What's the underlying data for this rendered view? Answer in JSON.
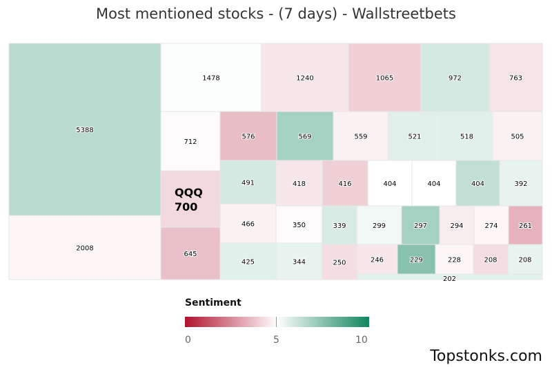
{
  "title": "Most mentioned stocks - (7 days) - Wallstreetbets",
  "legend": {
    "title": "Sentiment",
    "ticks": [
      "0",
      "5",
      "10"
    ],
    "colors": {
      "low": "#b0122e",
      "mid": "#ffffff",
      "high": "#11855e"
    }
  },
  "credit": "Topstonks.com",
  "chart_data": {
    "type": "treemap",
    "value_meaning": "mentions",
    "color_meaning": "sentiment (0-10)",
    "items": [
      {
        "label": "5388",
        "value": 5388,
        "sentiment": 6.5
      },
      {
        "label": "2008",
        "value": 2008,
        "sentiment": 4.8
      },
      {
        "label": "1478",
        "value": 1478,
        "sentiment": 5.1
      },
      {
        "label": "1240",
        "value": 1240,
        "sentiment": 4.5
      },
      {
        "label": "1065",
        "value": 1065,
        "sentiment": 4.0
      },
      {
        "label": "972",
        "value": 972,
        "sentiment": 5.9
      },
      {
        "label": "763",
        "value": 763,
        "sentiment": 4.4
      },
      {
        "label": "712",
        "value": 712,
        "sentiment": 4.9
      },
      {
        "label": "576",
        "value": 576,
        "sentiment": 3.6
      },
      {
        "label": "569",
        "value": 569,
        "sentiment": 6.9
      },
      {
        "label": "559",
        "value": 559,
        "sentiment": 4.7
      },
      {
        "label": "521",
        "value": 521,
        "sentiment": 5.6
      },
      {
        "label": "518",
        "value": 518,
        "sentiment": 5.6
      },
      {
        "label": "505",
        "value": 505,
        "sentiment": 4.7
      },
      {
        "ticker": "QQQ",
        "label": "700",
        "value": 700,
        "sentiment": 4.2
      },
      {
        "label": "645",
        "value": 645,
        "sentiment": 3.7
      },
      {
        "label": "491",
        "value": 491,
        "sentiment": 5.9
      },
      {
        "label": "466",
        "value": 466,
        "sentiment": 4.7
      },
      {
        "label": "425",
        "value": 425,
        "sentiment": 5.6
      },
      {
        "label": "418",
        "value": 418,
        "sentiment": 4.5
      },
      {
        "label": "416",
        "value": 416,
        "sentiment": 4.0
      },
      {
        "label": "404",
        "value": 404,
        "sentiment": 5.0
      },
      {
        "label": "404",
        "value": 404,
        "sentiment": 5.0
      },
      {
        "label": "404",
        "value": 404,
        "sentiment": 6.3
      },
      {
        "label": "392",
        "value": 392,
        "sentiment": 5.5
      },
      {
        "label": "350",
        "value": 350,
        "sentiment": 4.9
      },
      {
        "label": "344",
        "value": 344,
        "sentiment": 5.5
      },
      {
        "label": "339",
        "value": 339,
        "sentiment": 5.8
      },
      {
        "label": "299",
        "value": 299,
        "sentiment": 5.3
      },
      {
        "label": "297",
        "value": 297,
        "sentiment": 6.9
      },
      {
        "label": "294",
        "value": 294,
        "sentiment": 4.6
      },
      {
        "label": "274",
        "value": 274,
        "sentiment": 4.8
      },
      {
        "label": "261",
        "value": 261,
        "sentiment": 3.4
      },
      {
        "label": "250",
        "value": 250,
        "sentiment": 4.3
      },
      {
        "label": "246",
        "value": 246,
        "sentiment": 4.5
      },
      {
        "label": "229",
        "value": 229,
        "sentiment": 7.5
      },
      {
        "label": "228",
        "value": 228,
        "sentiment": 4.8
      },
      {
        "label": "208",
        "value": 208,
        "sentiment": 4.3
      },
      {
        "label": "208",
        "value": 208,
        "sentiment": 5.5
      },
      {
        "label": "202",
        "value": 202,
        "sentiment": 5.6
      }
    ]
  }
}
